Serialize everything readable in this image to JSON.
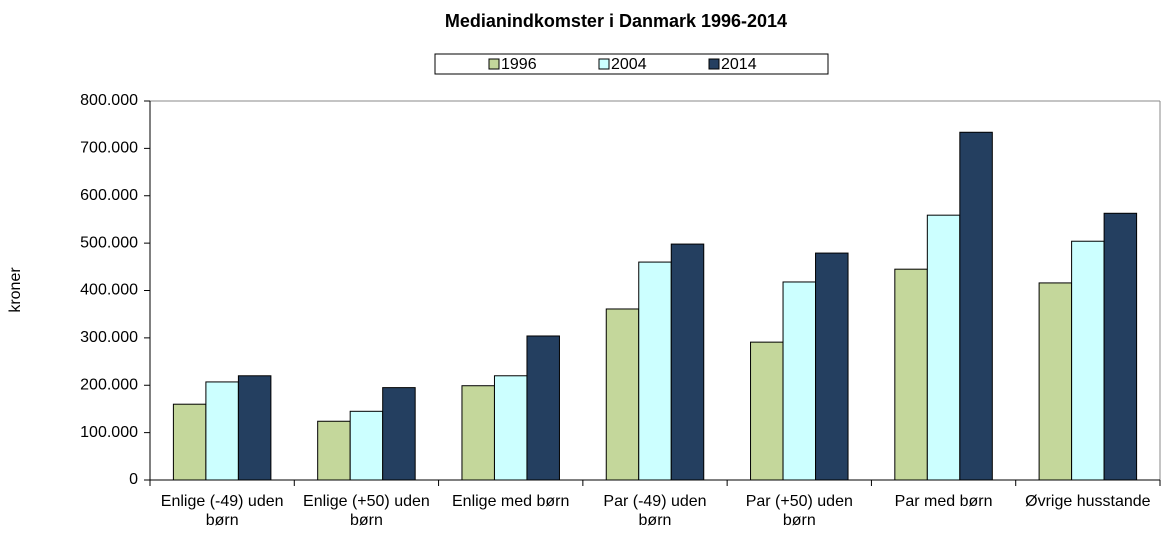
{
  "chart_data": {
    "type": "bar",
    "title": "Medianindkomster i Danmark 1996-2014",
    "ylabel": "kroner",
    "categories": [
      "Enlige (-49) uden børn",
      "Enlige (+50) uden børn",
      "Enlige med børn",
      "Par (-49) uden børn",
      "Par (+50) uden børn",
      "Par med børn",
      "Øvrige husstande"
    ],
    "series": [
      {
        "name": "1996",
        "color": "#c4d79b",
        "values": [
          160000,
          124000,
          199000,
          361000,
          291000,
          445000,
          416000
        ]
      },
      {
        "name": "2004",
        "color": "#ccffff",
        "values": [
          207000,
          145000,
          220000,
          460000,
          418000,
          559000,
          504000
        ]
      },
      {
        "name": "2014",
        "color": "#243f60",
        "values": [
          220000,
          195000,
          304000,
          498000,
          479000,
          734000,
          563000
        ]
      }
    ],
    "ylim": [
      0,
      800000
    ],
    "yticks": [
      0,
      {
        "value": 100000,
        "label": "100.000"
      },
      {
        "value": 200000,
        "label": "200.000"
      },
      {
        "value": 300000,
        "label": "300.000"
      },
      {
        "value": 400000,
        "label": "400.000"
      },
      {
        "value": 500000,
        "label": "500.000"
      },
      {
        "value": 600000,
        "label": "600.000"
      },
      {
        "value": 700000,
        "label": "700.000"
      },
      {
        "value": 800000,
        "label": "800.000"
      }
    ],
    "legend": "top"
  }
}
